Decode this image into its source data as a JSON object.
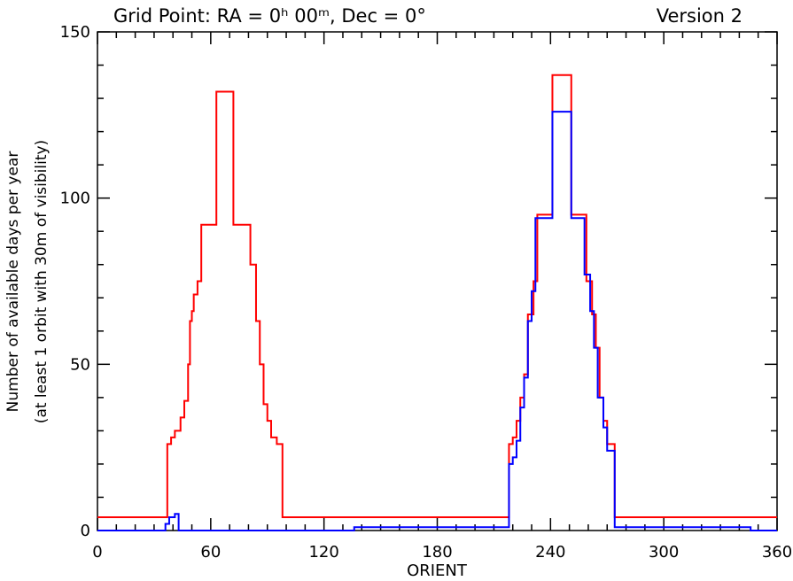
{
  "chart_data": {
    "type": "line",
    "title_left": "Grid Point: RA = 0ʰ 00ᵐ, Dec = 0°",
    "title_right": "Version 2",
    "xlabel": "ORIENT",
    "ylabel_line1": "Number of available days per year",
    "ylabel_line2": "(at least 1 orbit with 30m of visibility)",
    "xlim": [
      0,
      360
    ],
    "ylim": [
      0,
      150
    ],
    "x_ticks": [
      0,
      60,
      120,
      180,
      240,
      300,
      360
    ],
    "y_ticks": [
      0,
      50,
      100,
      150
    ],
    "x_minor_step": 10,
    "y_minor_step": 10,
    "grid": false,
    "series": [
      {
        "color": "#ff0000",
        "line_style": "step",
        "points": [
          [
            0,
            4
          ],
          [
            37,
            4
          ],
          [
            37,
            26
          ],
          [
            39,
            26
          ],
          [
            39,
            28
          ],
          [
            41,
            28
          ],
          [
            41,
            30
          ],
          [
            44,
            30
          ],
          [
            44,
            34
          ],
          [
            46,
            34
          ],
          [
            46,
            39
          ],
          [
            48,
            39
          ],
          [
            48,
            50
          ],
          [
            49,
            50
          ],
          [
            49,
            63
          ],
          [
            50,
            63
          ],
          [
            50,
            66
          ],
          [
            51,
            66
          ],
          [
            51,
            71
          ],
          [
            53,
            71
          ],
          [
            53,
            75
          ],
          [
            55,
            75
          ],
          [
            55,
            92
          ],
          [
            63,
            92
          ],
          [
            63,
            132
          ],
          [
            72,
            132
          ],
          [
            72,
            92
          ],
          [
            81,
            92
          ],
          [
            81,
            80
          ],
          [
            84,
            80
          ],
          [
            84,
            63
          ],
          [
            86,
            63
          ],
          [
            86,
            50
          ],
          [
            88,
            50
          ],
          [
            88,
            38
          ],
          [
            90,
            38
          ],
          [
            90,
            33
          ],
          [
            92,
            33
          ],
          [
            92,
            28
          ],
          [
            95,
            28
          ],
          [
            95,
            26
          ],
          [
            98,
            26
          ],
          [
            98,
            4
          ],
          [
            218,
            4
          ],
          [
            218,
            26
          ],
          [
            220,
            26
          ],
          [
            220,
            28
          ],
          [
            222,
            28
          ],
          [
            222,
            33
          ],
          [
            224,
            33
          ],
          [
            224,
            40
          ],
          [
            226,
            40
          ],
          [
            226,
            47
          ],
          [
            228,
            47
          ],
          [
            228,
            65
          ],
          [
            231,
            65
          ],
          [
            231,
            75
          ],
          [
            233,
            75
          ],
          [
            233,
            95
          ],
          [
            241,
            95
          ],
          [
            241,
            137
          ],
          [
            251,
            137
          ],
          [
            251,
            95
          ],
          [
            259,
            95
          ],
          [
            259,
            75
          ],
          [
            262,
            75
          ],
          [
            262,
            65
          ],
          [
            264,
            65
          ],
          [
            264,
            55
          ],
          [
            266,
            55
          ],
          [
            266,
            40
          ],
          [
            268,
            40
          ],
          [
            268,
            33
          ],
          [
            270,
            33
          ],
          [
            270,
            26
          ],
          [
            274,
            26
          ],
          [
            274,
            4
          ],
          [
            360,
            4
          ]
        ]
      },
      {
        "color": "#0000ff",
        "line_style": "step",
        "points": [
          [
            0,
            0
          ],
          [
            36,
            0
          ],
          [
            36,
            2
          ],
          [
            38,
            2
          ],
          [
            38,
            4
          ],
          [
            41,
            4
          ],
          [
            41,
            5
          ],
          [
            43,
            5
          ],
          [
            43,
            0
          ],
          [
            136,
            0
          ],
          [
            136,
            1
          ],
          [
            218,
            1
          ],
          [
            218,
            20
          ],
          [
            220,
            20
          ],
          [
            220,
            22
          ],
          [
            222,
            22
          ],
          [
            222,
            27
          ],
          [
            224,
            27
          ],
          [
            224,
            37
          ],
          [
            226,
            37
          ],
          [
            226,
            46
          ],
          [
            228,
            46
          ],
          [
            228,
            63
          ],
          [
            230,
            63
          ],
          [
            230,
            72
          ],
          [
            232,
            72
          ],
          [
            232,
            94
          ],
          [
            241,
            94
          ],
          [
            241,
            126
          ],
          [
            251,
            126
          ],
          [
            251,
            94
          ],
          [
            258,
            94
          ],
          [
            258,
            77
          ],
          [
            261,
            77
          ],
          [
            261,
            66
          ],
          [
            263,
            66
          ],
          [
            263,
            55
          ],
          [
            265,
            55
          ],
          [
            265,
            40
          ],
          [
            268,
            40
          ],
          [
            268,
            31
          ],
          [
            270,
            31
          ],
          [
            270,
            24
          ],
          [
            274,
            24
          ],
          [
            274,
            1
          ],
          [
            346,
            1
          ],
          [
            346,
            0
          ],
          [
            360,
            0
          ]
        ]
      }
    ]
  }
}
